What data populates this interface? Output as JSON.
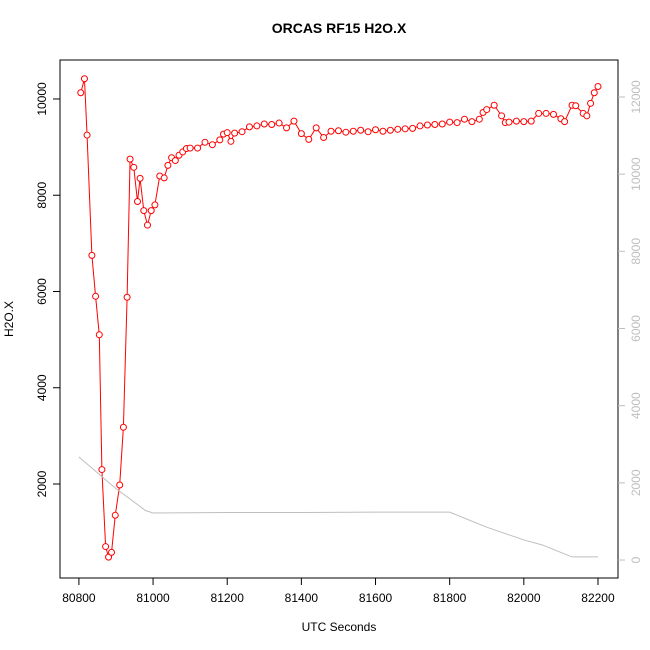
{
  "chart_data": {
    "type": "line",
    "title": "ORCAS RF15 H2O.X",
    "x_label": "UTC Seconds",
    "y_label": "H2O.X",
    "xlim": [
      80749,
      82254
    ],
    "ylim": [
      47,
      10810
    ],
    "y2lim": [
      -466,
      12958
    ],
    "xticks": [
      80800,
      81000,
      81200,
      81400,
      81600,
      81800,
      82000,
      82200
    ],
    "yticks": [
      2000,
      4000,
      6000,
      8000,
      10000
    ],
    "y2ticks": [
      0,
      2000,
      4000,
      6000,
      8000,
      10000,
      12000
    ],
    "y2_color": "#bebebe",
    "series": [
      {
        "color": "#ff0000",
        "markers": true,
        "x": [
          80805,
          80815,
          80822,
          80835,
          80845,
          80855,
          80862,
          80872,
          80880,
          80888,
          80898,
          80910,
          80920,
          80930,
          80938,
          80948,
          80958,
          80965,
          80975,
          80985,
          80995,
          81005,
          81018,
          81030,
          81040,
          81050,
          81060,
          81070,
          81080,
          81090,
          81100,
          81120,
          81140,
          81160,
          81180,
          81190,
          81200,
          81210,
          81220,
          81240,
          81260,
          81280,
          81300,
          81320,
          81340,
          81360,
          81380,
          81400,
          81420,
          81440,
          81460,
          81480,
          81500,
          81520,
          81540,
          81560,
          81580,
          81600,
          81620,
          81640,
          81660,
          81680,
          81700,
          81720,
          81740,
          81760,
          81780,
          81800,
          81820,
          81840,
          81860,
          81880,
          81890,
          81900,
          81920,
          81940,
          81950,
          81960,
          81980,
          82000,
          82020,
          82040,
          82060,
          82080,
          82100,
          82110,
          82130,
          82140,
          82160,
          82170,
          82180,
          82190,
          82200
        ],
        "values": [
          10130,
          10420,
          9250,
          6750,
          5900,
          5100,
          2300,
          700,
          480,
          580,
          1350,
          1980,
          3180,
          5880,
          8750,
          8580,
          7870,
          8350,
          7680,
          7380,
          7680,
          7800,
          8400,
          8360,
          8620,
          8780,
          8720,
          8830,
          8900,
          8970,
          8980,
          8980,
          9100,
          9050,
          9150,
          9270,
          9300,
          9120,
          9290,
          9320,
          9420,
          9440,
          9480,
          9470,
          9500,
          9400,
          9540,
          9280,
          9160,
          9400,
          9200,
          9330,
          9340,
          9310,
          9330,
          9350,
          9320,
          9360,
          9330,
          9350,
          9370,
          9380,
          9390,
          9440,
          9460,
          9470,
          9480,
          9520,
          9510,
          9580,
          9530,
          9580,
          9720,
          9780,
          9870,
          9650,
          9510,
          9520,
          9540,
          9530,
          9540,
          9700,
          9700,
          9680,
          9590,
          9530,
          9870,
          9860,
          9700,
          9650,
          9910,
          10130,
          10260
        ]
      },
      {
        "color": "#bebebe",
        "axis": "y2",
        "markers": false,
        "x": [
          80800,
          80900,
          80980,
          81000,
          81200,
          81400,
          81600,
          81800,
          81900,
          82000,
          82050,
          82130,
          82200
        ],
        "values": [
          2670,
          1850,
          1280,
          1220,
          1230,
          1230,
          1240,
          1240,
          850,
          520,
          390,
          80,
          80
        ]
      }
    ]
  }
}
